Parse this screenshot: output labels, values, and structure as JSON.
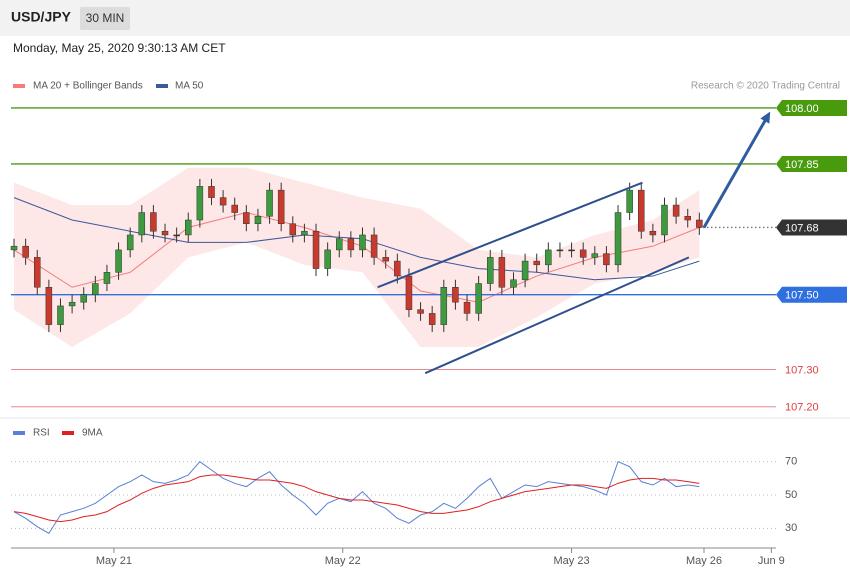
{
  "header": {
    "symbol": "USD/JPY",
    "interval": "30 MIN",
    "timestamp": "Monday, May 25, 2020 9:30:13 AM CET"
  },
  "chart_data": [
    {
      "type": "candlestick",
      "credit": "Research © 2020 Trading Central",
      "xlim": [
        -0.26,
        65.6
      ],
      "ylim": [
        107.17,
        108.04
      ],
      "up_color": "#3e9a3e",
      "down_color": "#c83a2e",
      "open": [
        107.62,
        107.63,
        107.6,
        107.52,
        107.42,
        107.47,
        107.48,
        107.5,
        107.53,
        107.56,
        107.62,
        107.66,
        107.72,
        107.67,
        107.66,
        107.66,
        107.7,
        107.79,
        107.76,
        107.74,
        107.72,
        107.69,
        107.71,
        107.78,
        107.69,
        107.66,
        107.67,
        107.57,
        107.62,
        107.65,
        107.62,
        107.66,
        107.6,
        107.59,
        107.55,
        107.46,
        107.45,
        107.42,
        107.52,
        107.48,
        107.45,
        107.53,
        107.6,
        107.52,
        107.54,
        107.59,
        107.58,
        107.62,
        107.62,
        107.62,
        107.6,
        107.61,
        107.58,
        107.72,
        107.78,
        107.67,
        107.66,
        107.74,
        107.71,
        107.7
      ],
      "high": [
        107.65,
        107.65,
        107.62,
        107.54,
        107.49,
        107.5,
        107.52,
        107.55,
        107.58,
        107.64,
        107.68,
        107.74,
        107.74,
        107.69,
        107.68,
        107.72,
        107.81,
        107.81,
        107.78,
        107.76,
        107.74,
        107.73,
        107.8,
        107.8,
        107.71,
        107.69,
        107.69,
        107.64,
        107.67,
        107.67,
        107.68,
        107.68,
        107.62,
        107.61,
        107.57,
        107.48,
        107.47,
        107.54,
        107.54,
        107.5,
        107.55,
        107.62,
        107.62,
        107.56,
        107.61,
        107.61,
        107.64,
        107.64,
        107.64,
        107.64,
        107.63,
        107.63,
        107.74,
        107.8,
        107.8,
        107.69,
        107.76,
        107.76,
        107.73,
        107.72
      ],
      "low": [
        107.6,
        107.58,
        107.5,
        107.4,
        107.4,
        107.45,
        107.46,
        107.48,
        107.51,
        107.54,
        107.6,
        107.64,
        107.65,
        107.64,
        107.64,
        107.64,
        107.68,
        107.74,
        107.72,
        107.7,
        107.67,
        107.67,
        107.69,
        107.67,
        107.64,
        107.64,
        107.55,
        107.55,
        107.6,
        107.6,
        107.6,
        107.58,
        107.57,
        107.53,
        107.44,
        107.43,
        107.4,
        107.4,
        107.46,
        107.43,
        107.43,
        107.51,
        107.5,
        107.5,
        107.52,
        107.56,
        107.56,
        107.6,
        107.6,
        107.58,
        107.58,
        107.56,
        107.56,
        107.7,
        107.65,
        107.64,
        107.64,
        107.69,
        107.68,
        107.66
      ],
      "close": [
        107.63,
        107.6,
        107.52,
        107.42,
        107.47,
        107.48,
        107.5,
        107.53,
        107.56,
        107.62,
        107.66,
        107.72,
        107.67,
        107.66,
        107.66,
        107.7,
        107.79,
        107.76,
        107.74,
        107.72,
        107.69,
        107.71,
        107.78,
        107.69,
        107.66,
        107.67,
        107.57,
        107.62,
        107.65,
        107.62,
        107.66,
        107.6,
        107.59,
        107.55,
        107.46,
        107.45,
        107.42,
        107.52,
        107.48,
        107.45,
        107.53,
        107.6,
        107.52,
        107.54,
        107.59,
        107.58,
        107.62,
        107.62,
        107.62,
        107.6,
        107.61,
        107.58,
        107.72,
        107.78,
        107.67,
        107.66,
        107.74,
        107.71,
        107.7,
        107.68
      ],
      "bands": {
        "name": "MA 20 + Bollinger Bands",
        "color": "#f47c7c",
        "fill": "#fde3e3",
        "x": [
          0,
          5,
          10,
          15,
          20,
          25,
          30,
          35,
          40,
          45,
          50,
          55,
          59
        ],
        "upper": [
          107.8,
          107.74,
          107.74,
          107.84,
          107.84,
          107.8,
          107.76,
          107.73,
          107.62,
          107.6,
          107.66,
          107.7,
          107.78
        ],
        "ma": [
          107.62,
          107.52,
          107.56,
          107.68,
          107.72,
          107.68,
          107.63,
          107.51,
          107.48,
          107.55,
          107.6,
          107.63,
          107.68
        ],
        "lower": [
          107.46,
          107.36,
          107.45,
          107.6,
          107.64,
          107.58,
          107.56,
          107.36,
          107.36,
          107.44,
          107.53,
          107.56,
          107.6
        ]
      },
      "ma50": {
        "name": "MA 50",
        "color": "#3a5a9a",
        "x": [
          0,
          5,
          10,
          15,
          20,
          25,
          30,
          35,
          40,
          45,
          50,
          55,
          59
        ],
        "values": [
          107.76,
          107.7,
          107.67,
          107.64,
          107.64,
          107.66,
          107.65,
          107.6,
          107.57,
          107.56,
          107.54,
          107.55,
          107.59
        ]
      },
      "levels": [
        {
          "value": 108.0,
          "label": "108.00",
          "color": "#4a9a0e",
          "style": "box",
          "line": "solid"
        },
        {
          "value": 107.85,
          "label": "107.85",
          "color": "#4a9a0e",
          "style": "box",
          "line": "solid"
        },
        {
          "value": 107.68,
          "label": "107.68",
          "color": "#333333",
          "style": "box",
          "line": "dotted"
        },
        {
          "value": 107.5,
          "label": "107.50",
          "color": "#2f6fe0",
          "style": "box",
          "line": "solid"
        },
        {
          "value": 107.3,
          "label": "107.30",
          "color": "#e04040",
          "style": "text",
          "line": "solid"
        },
        {
          "value": 107.2,
          "label": "107.20",
          "color": "#e04040",
          "style": "text",
          "line": "solid"
        }
      ],
      "trendlines": [
        {
          "x": [
            31.3,
            54.1
          ],
          "y": [
            107.52,
            107.8
          ],
          "color": "#2f4f8f"
        },
        {
          "x": [
            35.4,
            58.1
          ],
          "y": [
            107.29,
            107.6
          ],
          "color": "#2f4f8f"
        }
      ],
      "arrow": {
        "x": [
          59.4,
          65.1
        ],
        "y": [
          107.68,
          107.99
        ],
        "color": "#2f5ca0"
      }
    },
    {
      "type": "line",
      "xlim": [
        -0.26,
        65.6
      ],
      "ylim": [
        20,
        83
      ],
      "yticks": [
        30,
        50,
        70
      ],
      "xticks": [
        {
          "value": 8.6,
          "label": "May 21"
        },
        {
          "value": 28.3,
          "label": "May 22"
        },
        {
          "value": 48.0,
          "label": "May 23"
        },
        {
          "value": 59.4,
          "label": "May 26"
        },
        {
          "value": 65.2,
          "label": "Jun 9"
        }
      ],
      "series": [
        {
          "name": "RSI",
          "color": "#5b7fd6",
          "values": [
            40,
            36,
            31,
            27,
            38,
            40,
            42,
            45,
            50,
            55,
            58,
            62,
            58,
            57,
            59,
            62,
            70,
            65,
            60,
            57,
            55,
            60,
            64,
            56,
            50,
            45,
            38,
            45,
            48,
            46,
            52,
            45,
            42,
            36,
            33,
            38,
            40,
            45,
            42,
            48,
            55,
            60,
            48,
            52,
            56,
            55,
            58,
            57,
            56,
            55,
            53,
            50,
            70,
            67,
            58,
            56,
            60,
            55,
            56,
            55
          ]
        },
        {
          "name": "9MA",
          "color": "#e02020",
          "values": [
            40,
            39,
            37,
            35,
            34,
            35,
            37,
            38,
            40,
            44,
            47,
            51,
            54,
            56,
            57,
            58,
            61,
            62,
            62,
            61,
            60,
            59,
            59,
            58,
            57,
            55,
            52,
            50,
            48,
            47,
            47,
            46,
            45,
            44,
            42,
            40,
            39,
            39,
            40,
            41,
            43,
            46,
            48,
            50,
            52,
            53,
            54,
            55,
            56,
            56,
            55,
            54,
            57,
            59,
            60,
            60,
            59,
            59,
            58,
            57
          ]
        }
      ]
    }
  ]
}
